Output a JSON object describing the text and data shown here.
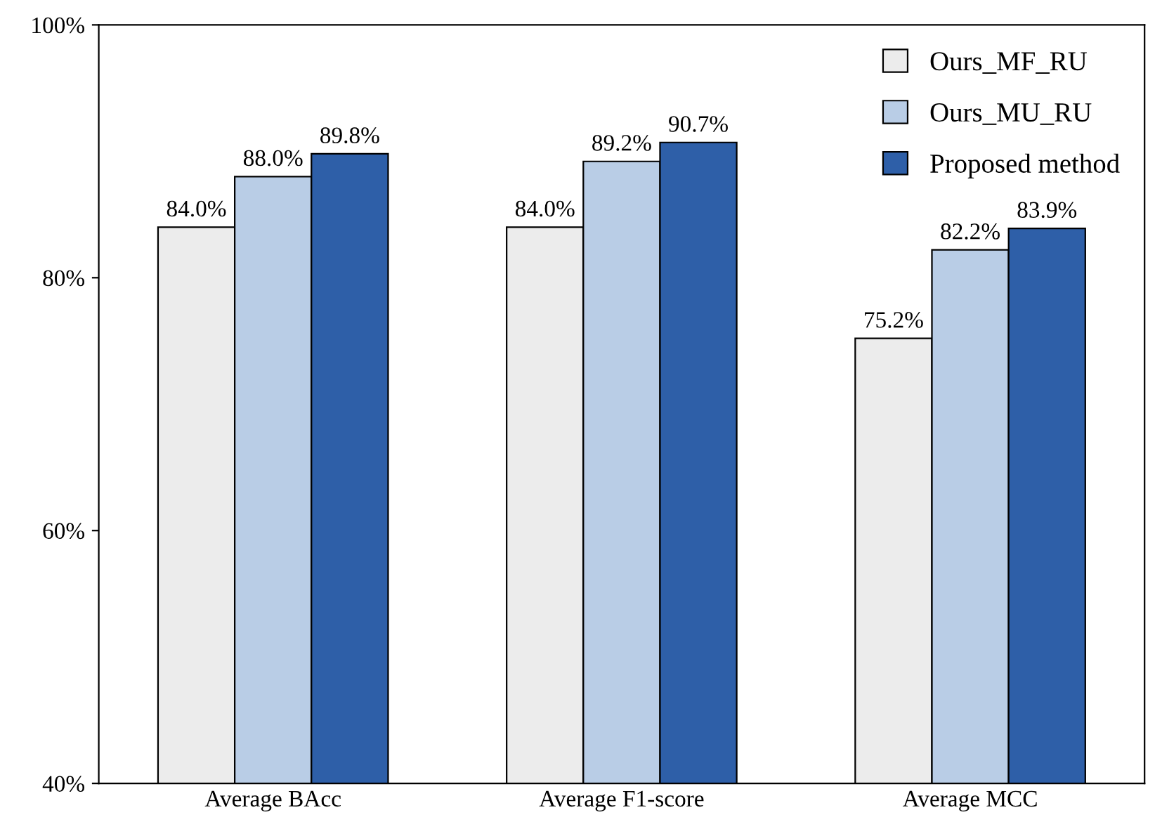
{
  "chart_data": {
    "type": "bar",
    "categories": [
      "Average BAcc",
      "Average F1-score",
      "Average MCC"
    ],
    "series": [
      {
        "name": "Ours_MF_RU",
        "color": "#ececec",
        "values": [
          84.0,
          84.0,
          75.2
        ],
        "value_labels": [
          "84.0%",
          "84.0%",
          "75.2%"
        ]
      },
      {
        "name": "Ours_MU_RU",
        "color": "#b9cde6",
        "values": [
          88.0,
          89.2,
          82.2
        ],
        "value_labels": [
          "88.0%",
          "89.2%",
          "82.2%"
        ]
      },
      {
        "name": "Proposed method",
        "color": "#2e5fa8",
        "values": [
          89.8,
          90.7,
          83.9
        ],
        "value_labels": [
          "89.8%",
          "90.7%",
          "83.9%"
        ]
      }
    ],
    "ylim": [
      40,
      100
    ],
    "yticks": [
      {
        "value": 40,
        "label": "40%"
      },
      {
        "value": 60,
        "label": "60%"
      },
      {
        "value": 80,
        "label": "80%"
      },
      {
        "value": 100,
        "label": "100%"
      }
    ],
    "grid": false,
    "legend": "top right"
  }
}
